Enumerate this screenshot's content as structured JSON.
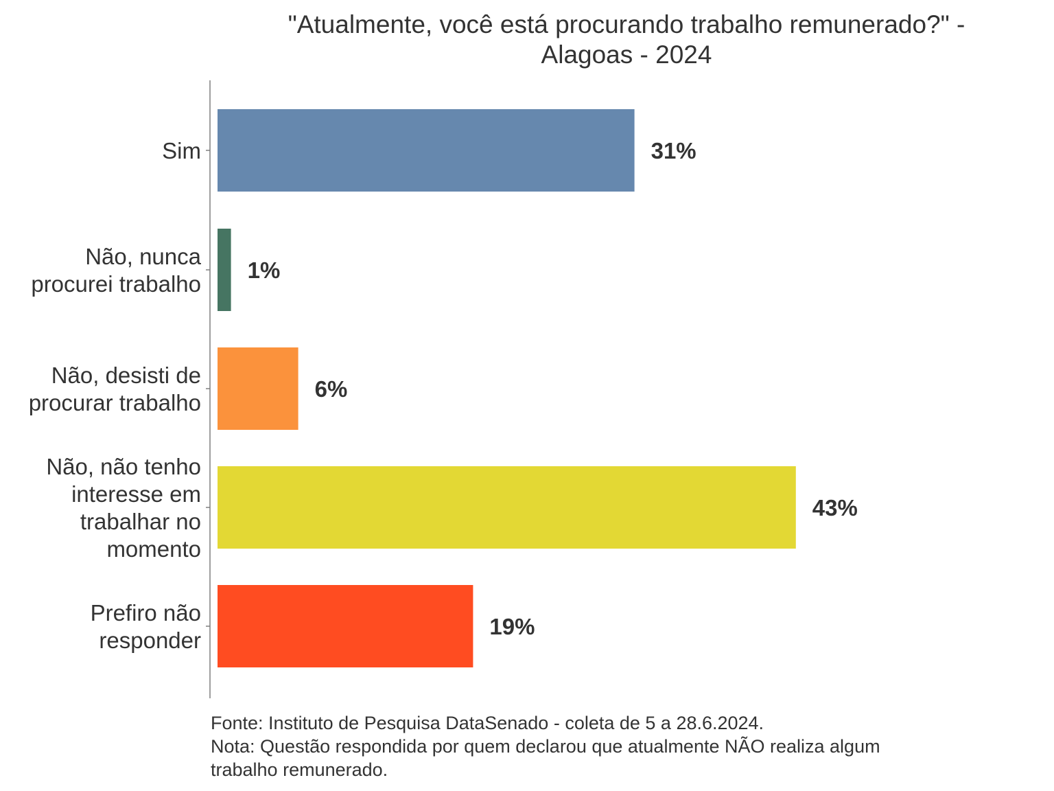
{
  "chart_data": {
    "type": "bar",
    "orientation": "horizontal",
    "title": "\"Atualmente, você está procurando trabalho remunerado?\" - Alagoas - 2024",
    "title_lines": [
      "\"Atualmente, você está procurando trabalho remunerado?\" -",
      "Alagoas - 2024"
    ],
    "categories": [
      [
        "Sim"
      ],
      [
        "Não, nunca",
        "procurei trabalho"
      ],
      [
        "Não, desisti de",
        "procurar trabalho"
      ],
      [
        "Não, não tenho",
        "interesse em",
        "trabalhar no",
        "momento"
      ],
      [
        "Prefiro não",
        "responder"
      ]
    ],
    "values": [
      31,
      1,
      6,
      43,
      19
    ],
    "value_labels": [
      "31%",
      "1%",
      "6%",
      "43%",
      "19%"
    ],
    "colors": [
      "#6688ae",
      "#467562",
      "#fb923c",
      "#e3d834",
      "#ff4c21"
    ],
    "xlim": [
      0,
      100
    ],
    "grid": false,
    "legend": "none",
    "caption": [
      "Fonte: Instituto de Pesquisa DataSenado - coleta de 5 a 28.6.2024.",
      "Nota: Questão respondida por quem declarou que atualmente NÃO realiza algum",
      "trabalho remunerado."
    ]
  }
}
